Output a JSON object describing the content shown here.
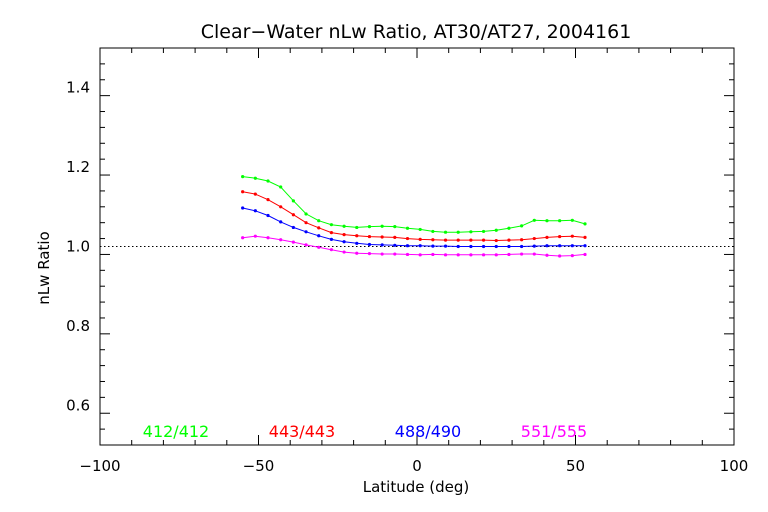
{
  "chart_data": {
    "type": "line",
    "title": "Clear−Water nLw Ratio, AT30/AT27, 2004161",
    "xlabel": "Latitude (deg)",
    "ylabel": "nLw Ratio",
    "xlim": [
      -100,
      100
    ],
    "ylim": [
      0.5,
      1.5
    ],
    "xticks": [
      -100,
      -50,
      0,
      50,
      100
    ],
    "xtick_labels": [
      "−100",
      "−50",
      "0",
      "50",
      "100"
    ],
    "yticks": [
      0.6,
      0.8,
      1.0,
      1.2,
      1.4
    ],
    "ytick_labels": [
      "0.6",
      "0.8",
      "1.0",
      "1.2",
      "1.4"
    ],
    "reference_line": 1.0,
    "grid": false,
    "x": [
      -55,
      -51,
      -47,
      -43,
      -39,
      -35,
      -31,
      -27,
      -23,
      -19,
      -15,
      -11,
      -7,
      -3,
      1,
      5,
      9,
      13,
      17,
      21,
      25,
      29,
      33,
      37,
      41,
      45,
      49,
      53
    ],
    "series": [
      {
        "name": "412/412",
        "color": "#00ff00",
        "values": [
          1.176,
          1.172,
          1.165,
          1.15,
          1.115,
          1.082,
          1.065,
          1.055,
          1.051,
          1.048,
          1.05,
          1.051,
          1.05,
          1.046,
          1.043,
          1.038,
          1.036,
          1.036,
          1.037,
          1.038,
          1.041,
          1.046,
          1.052,
          1.066,
          1.065,
          1.065,
          1.066,
          1.057
        ]
      },
      {
        "name": "443/443",
        "color": "#ff0000",
        "values": [
          1.138,
          1.132,
          1.118,
          1.1,
          1.08,
          1.06,
          1.047,
          1.035,
          1.03,
          1.027,
          1.025,
          1.024,
          1.023,
          1.02,
          1.018,
          1.017,
          1.016,
          1.016,
          1.016,
          1.016,
          1.015,
          1.016,
          1.017,
          1.02,
          1.023,
          1.025,
          1.026,
          1.023
        ]
      },
      {
        "name": "488/490",
        "color": "#0000ff",
        "values": [
          1.097,
          1.09,
          1.078,
          1.062,
          1.048,
          1.037,
          1.027,
          1.018,
          1.012,
          1.008,
          1.005,
          1.004,
          1.003,
          1.002,
          1.002,
          1.001,
          1.001,
          1.0,
          1.0,
          1.0,
          1.0,
          1.0,
          1.0,
          1.001,
          1.002,
          1.002,
          1.002,
          1.002
        ]
      },
      {
        "name": "551/555",
        "color": "#ff00ff",
        "values": [
          1.022,
          1.026,
          1.022,
          1.017,
          1.011,
          1.004,
          0.998,
          0.992,
          0.986,
          0.983,
          0.982,
          0.981,
          0.981,
          0.98,
          0.979,
          0.98,
          0.979,
          0.979,
          0.979,
          0.979,
          0.979,
          0.98,
          0.981,
          0.981,
          0.978,
          0.976,
          0.977,
          0.98
        ]
      }
    ]
  }
}
